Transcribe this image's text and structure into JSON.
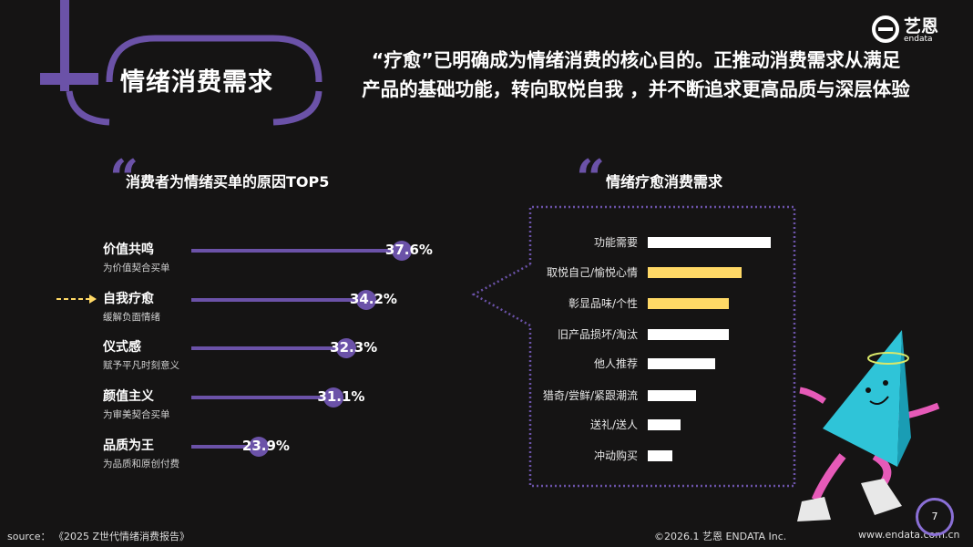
{
  "header": {
    "title": "情绪消费需求",
    "headline_line1": "“疗愈”已明确成为情绪消费的核心目的。正推动消费需求从满足",
    "headline_line2": "产品的基础功能，转向取悦自我 ，并不断追求更高品质与深层体验",
    "logo_cn": "艺恩",
    "logo_en": "endata"
  },
  "colors": {
    "background": "#151414",
    "accent_purple": "#6b52a8",
    "highlight_yellow": "#ffd966",
    "bar_white": "#ffffff"
  },
  "chart_data": [
    {
      "type": "bar",
      "title": "消费者为情绪买单的原因TOP5",
      "categories": [
        "价值共鸣",
        "自我疗愈",
        "仪式感",
        "颜值主义",
        "品质为王"
      ],
      "subtitles": [
        "为价值契合买单",
        "缓解负面情绪",
        "赋予平凡时刻意义",
        "为审美契合买单",
        "为品质和原创付费"
      ],
      "values": [
        37.6,
        34.2,
        32.3,
        31.1,
        23.9
      ],
      "labels": [
        "37.6%",
        "34.2%",
        "32.3%",
        "31.1%",
        "23.9%"
      ],
      "highlighted": "自我疗愈",
      "orientation": "horizontal",
      "unit": "%"
    },
    {
      "type": "bar",
      "title": "情绪疗愈消费需求",
      "categories": [
        "功能需要",
        "取悦自己/愉悦心情",
        "彰显品味/个性",
        "旧产品损坏/淘汰",
        "他人推荐",
        "猎奇/尝鲜/紧跟潮流",
        "送礼/送人",
        "冲动购买"
      ],
      "values": [
        1.0,
        0.76,
        0.66,
        0.66,
        0.55,
        0.39,
        0.27,
        0.2
      ],
      "highlighted": [
        "取悦自己/愉悦心情",
        "彰显品味/个性"
      ],
      "orientation": "horizontal",
      "value_scale": "relative to largest bar"
    }
  ],
  "footer": {
    "source": "source： 《2025 Z世代情绪消费报告》",
    "copyright": "©2026.1  艺恩 ENDATA Inc.",
    "website": "www.endata.com.cn",
    "page": "7"
  }
}
